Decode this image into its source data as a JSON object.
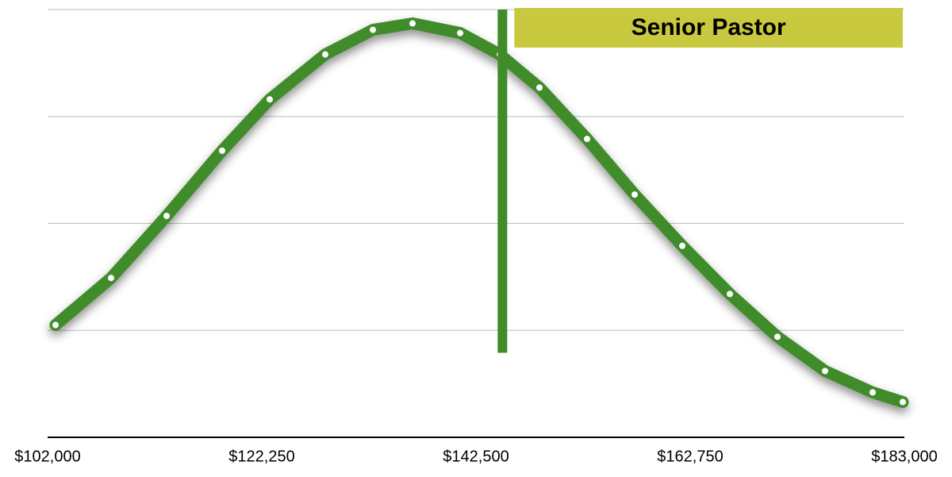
{
  "chart_data": {
    "type": "line",
    "x": [
      102750,
      108000,
      113250,
      118500,
      123000,
      128250,
      132750,
      136500,
      141000,
      144750,
      148500,
      153000,
      157500,
      162000,
      166500,
      171000,
      175500,
      180000,
      182850
    ],
    "series": [
      {
        "color": "#3f8c29",
        "values": [
          1.05,
          1.49,
          2.07,
          2.68,
          3.16,
          3.58,
          3.81,
          3.87,
          3.78,
          3.58,
          3.27,
          2.79,
          2.27,
          1.79,
          1.34,
          0.94,
          0.62,
          0.42,
          0.33
        ]
      }
    ],
    "xlim": [
      102000,
      183000
    ],
    "xticks": [
      {
        "value": 102000,
        "label": "$102,000"
      },
      {
        "value": 122250,
        "label": "$122,250"
      },
      {
        "value": 142500,
        "label": "$142,500"
      },
      {
        "value": 162750,
        "label": "$162,750"
      },
      {
        "value": 183000,
        "label": "$183,000"
      }
    ],
    "ylim": [
      0,
      4
    ],
    "yticks": [
      1,
      2,
      3,
      4
    ],
    "grid": true,
    "marker": {
      "x": 145000,
      "y_range": [
        0.79,
        4
      ],
      "color": "#3f8c29",
      "label": "Senior Pastor",
      "label_color": "#c9c93f"
    }
  }
}
